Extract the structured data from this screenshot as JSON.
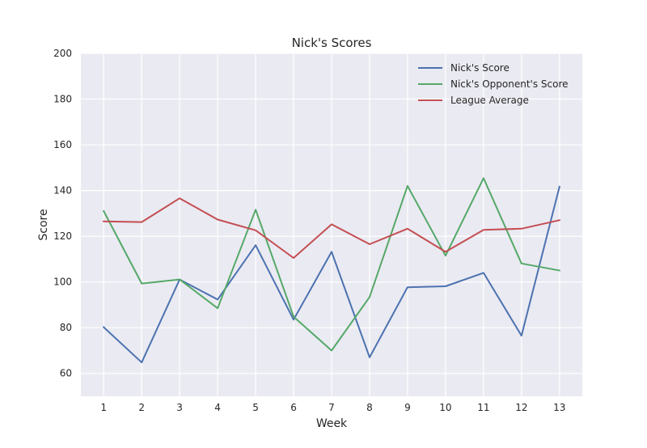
{
  "chart_data": {
    "type": "line",
    "title": "Nick's Scores",
    "xlabel": "Week",
    "ylabel": "Score",
    "x": [
      1,
      2,
      3,
      4,
      5,
      6,
      7,
      8,
      9,
      10,
      11,
      12,
      13
    ],
    "xlim": [
      0.4,
      13.6
    ],
    "ylim": [
      50,
      200
    ],
    "yticks": [
      60,
      80,
      100,
      120,
      140,
      160,
      180,
      200
    ],
    "grid": true,
    "legend_position": "top-right",
    "series": [
      {
        "name": "Nick's Score",
        "color": "#4c72b0",
        "values": [
          80.2,
          64.8,
          101.1,
          92.3,
          116.1,
          83.5,
          113.2,
          67.0,
          97.7,
          98.1,
          104.0,
          76.5,
          141.7
        ]
      },
      {
        "name": "Nick's Opponent's Score",
        "color": "#55a868",
        "values": [
          131.0,
          99.3,
          101.1,
          88.5,
          131.6,
          84.8,
          70.0,
          93.4,
          142.0,
          111.5,
          145.4,
          108.1,
          105.0
        ]
      },
      {
        "name": "League Average",
        "color": "#c44e52",
        "values": [
          126.5,
          126.2,
          136.6,
          127.3,
          122.6,
          110.5,
          125.2,
          116.5,
          123.3,
          113.2,
          122.8,
          123.3,
          127.0
        ]
      }
    ]
  }
}
